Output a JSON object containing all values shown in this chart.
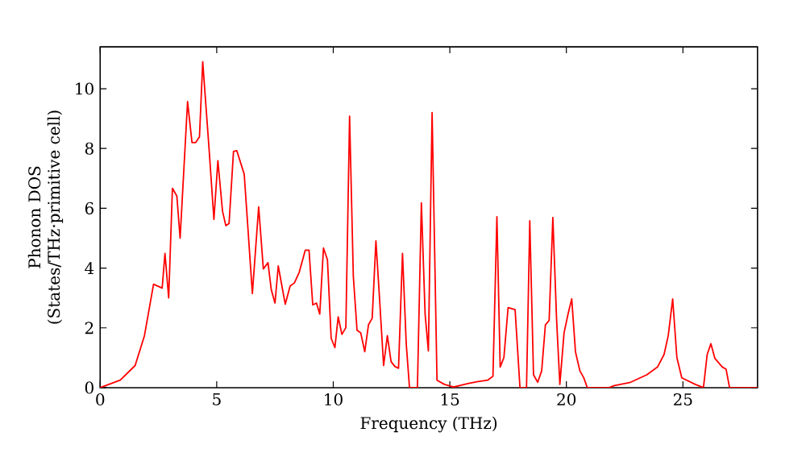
{
  "chart_data": {
    "type": "line",
    "xlabel": "Frequency (THz)",
    "ylabel": "Phonon DOS\n(States/THz·primitive cell)",
    "xlim": [
      0,
      28.2
    ],
    "ylim": [
      0,
      11.4
    ],
    "xticks": [
      0,
      5,
      10,
      15,
      20,
      25
    ],
    "yticks": [
      0,
      2,
      4,
      6,
      8,
      10
    ],
    "grid": false,
    "series": [
      {
        "color": "#ff0000",
        "x": [
          0,
          0.86,
          1.5,
          1.9,
          2.29,
          2.66,
          2.78,
          2.94,
          3.1,
          3.29,
          3.43,
          3.75,
          3.94,
          4.1,
          4.26,
          4.4,
          4.68,
          4.88,
          5.05,
          5.25,
          5.39,
          5.53,
          5.72,
          5.86,
          6.18,
          6.53,
          6.8,
          7.0,
          7.2,
          7.34,
          7.5,
          7.64,
          7.94,
          8.15,
          8.33,
          8.54,
          8.8,
          8.96,
          9.12,
          9.28,
          9.42,
          9.58,
          9.75,
          9.91,
          10.07,
          10.21,
          10.37,
          10.54,
          10.7,
          10.86,
          11.02,
          11.18,
          11.35,
          11.51,
          11.67,
          11.83,
          11.99,
          12.16,
          12.32,
          12.48,
          12.64,
          12.8,
          12.97,
          13.13,
          13.27,
          13.61,
          13.78,
          13.94,
          14.08,
          14.24,
          14.45,
          14.77,
          15.16,
          15.81,
          16.16,
          16.62,
          16.85,
          17.02,
          17.16,
          17.32,
          17.5,
          17.8,
          18.01,
          18.29,
          18.43,
          18.59,
          18.77,
          18.94,
          19.1,
          19.26,
          19.42,
          19.58,
          19.72,
          19.9,
          20.07,
          20.23,
          20.39,
          20.58,
          20.74,
          20.9,
          21.83,
          22.06,
          22.75,
          23.45,
          23.91,
          24.19,
          24.37,
          24.56,
          24.74,
          24.95,
          25.53,
          25.88,
          26.04,
          26.2,
          26.37,
          26.69,
          26.85,
          27.0,
          28.2
        ],
        "values": [
          0,
          0.25,
          0.74,
          1.74,
          3.46,
          3.33,
          4.49,
          3.0,
          6.67,
          6.41,
          5.0,
          9.57,
          8.2,
          8.2,
          8.39,
          10.9,
          7.9,
          5.63,
          7.59,
          5.9,
          5.42,
          5.49,
          7.9,
          7.93,
          7.14,
          3.15,
          6.05,
          3.97,
          4.18,
          3.28,
          2.83,
          4.07,
          2.79,
          3.4,
          3.5,
          3.86,
          4.6,
          4.6,
          2.77,
          2.83,
          2.46,
          4.67,
          4.28,
          1.65,
          1.34,
          2.37,
          1.78,
          2.01,
          9.08,
          3.73,
          1.92,
          1.83,
          1.2,
          2.1,
          2.32,
          4.91,
          2.92,
          0.74,
          1.74,
          0.87,
          0.71,
          0.65,
          4.49,
          1.47,
          0,
          0,
          6.18,
          2.46,
          1.23,
          9.2,
          0.25,
          0.11,
          0.02,
          0.14,
          0.2,
          0.25,
          0.38,
          5.72,
          0.69,
          1.01,
          2.68,
          2.61,
          0,
          0,
          5.58,
          0.43,
          0.18,
          0.56,
          2.1,
          2.25,
          5.69,
          2.28,
          0.11,
          1.83,
          2.46,
          2.97,
          1.2,
          0.56,
          0.34,
          0,
          0,
          0.07,
          0.18,
          0.43,
          0.69,
          1.11,
          1.74,
          2.97,
          1.01,
          0.33,
          0.11,
          0,
          1.11,
          1.47,
          0.98,
          0.69,
          0.62,
          0,
          0
        ]
      }
    ]
  }
}
